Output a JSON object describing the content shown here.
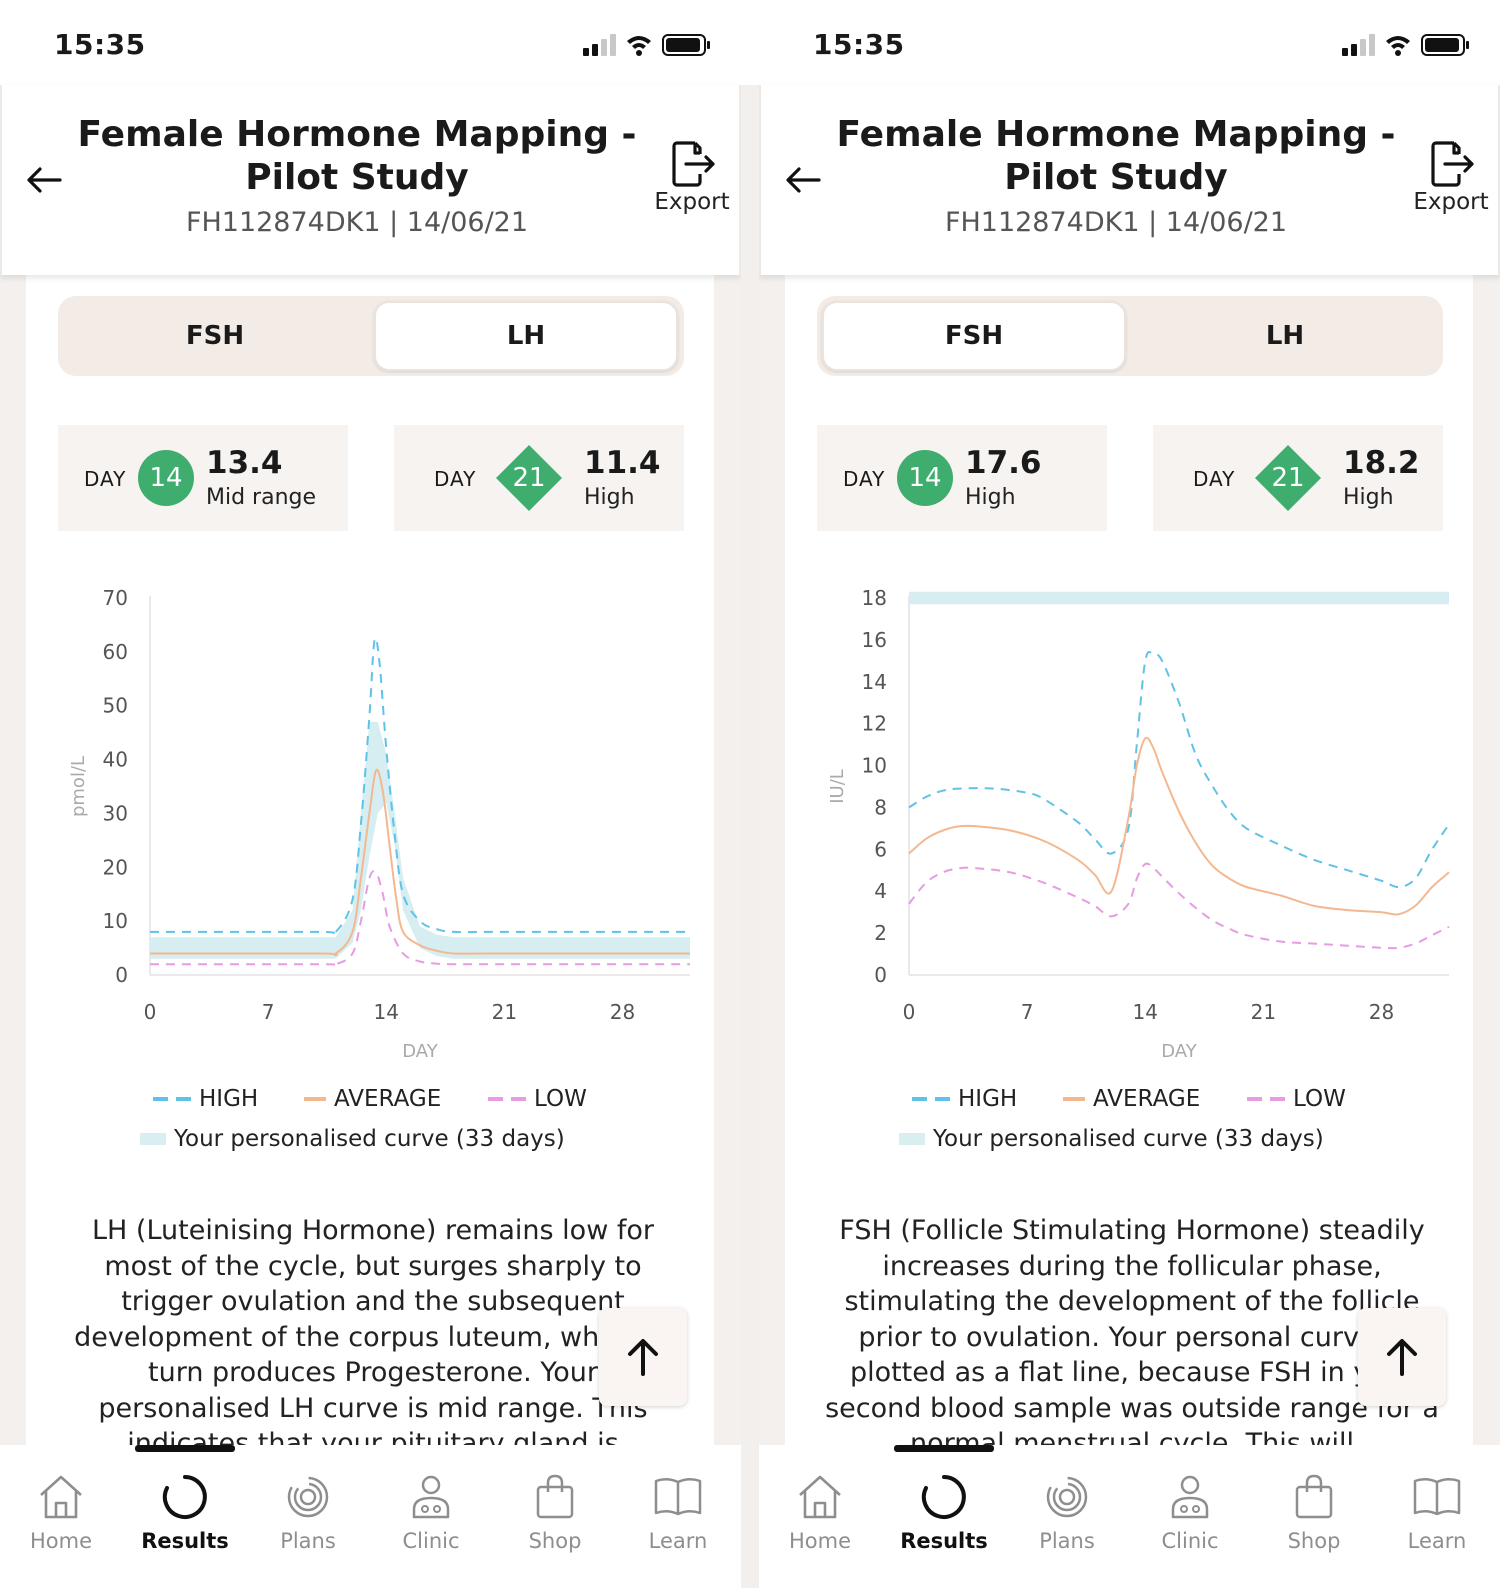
{
  "screens": [
    {
      "status_time": "15:35",
      "header": {
        "title": "Female Hormone Mapping - Pilot Study",
        "title_line1": "Female Hormone Mapping -",
        "title_line2": "Pilot Study",
        "subtitle": "FH112874DK1 | 14/06/21",
        "export_label": "Export"
      },
      "tabs": [
        {
          "label": "FSH",
          "active": false
        },
        {
          "label": "LH",
          "active": true
        }
      ],
      "day_cards": [
        {
          "day_label": "DAY",
          "day": "14",
          "shape": "circle",
          "value": "13.4",
          "status": "Mid range"
        },
        {
          "day_label": "DAY",
          "day": "21",
          "shape": "diamond",
          "value": "11.4",
          "status": "High"
        }
      ],
      "chart_data": {
        "type": "line",
        "ylabel": "pmol/L",
        "xlabel": "DAY",
        "xlim": [
          0,
          32
        ],
        "ylim": [
          0,
          70
        ],
        "xticks": [
          0,
          7,
          14,
          21,
          28
        ],
        "yticks": [
          0,
          10,
          20,
          30,
          40,
          50,
          60,
          70
        ],
        "personalised_band": {
          "x": [
            0,
            10,
            11,
            12,
            12.5,
            13,
            13.5,
            14,
            14.5,
            15,
            16,
            17,
            18,
            20,
            25,
            32
          ],
          "lower": [
            3,
            3,
            3,
            6,
            12,
            22,
            30,
            32,
            24,
            12,
            5,
            3.5,
            3,
            3,
            3,
            3
          ],
          "upper": [
            7,
            7,
            7,
            12,
            30,
            47,
            47,
            41,
            30,
            18,
            9,
            7.5,
            7,
            7,
            7,
            7
          ]
        },
        "series": [
          {
            "name": "HIGH",
            "color": "#5fc2e6",
            "dash": true,
            "x": [
              0,
              10,
              11,
              12,
              12.5,
              13,
              13.3,
              13.6,
              14,
              14.5,
              15,
              16,
              17,
              18,
              20,
              25,
              32
            ],
            "y": [
              8,
              8,
              8,
              14,
              28,
              48,
              62,
              58,
              42,
              26,
              15,
              10,
              8.5,
              8,
              8,
              8,
              8
            ]
          },
          {
            "name": "AVERAGE",
            "color": "#f3b890",
            "x": [
              0,
              10,
              11,
              12,
              12.5,
              13,
              13.4,
              13.8,
              14.2,
              14.6,
              15,
              16,
              17,
              18,
              20,
              25,
              32
            ],
            "y": [
              4,
              4,
              4,
              8,
              18,
              30,
              38,
              34,
              24,
              14,
              8,
              5.5,
              4.5,
              4,
              4,
              4,
              4
            ]
          },
          {
            "name": "LOW",
            "color": "#e79be3",
            "dash": true,
            "x": [
              0,
              10,
              11,
              12,
              12.5,
              13,
              13.4,
              13.8,
              14.2,
              15,
              16,
              17,
              18,
              20,
              25,
              32
            ],
            "y": [
              2,
              2,
              2,
              4,
              10,
              18,
              19,
              15,
              9,
              4,
              2.5,
              2.1,
              2,
              2,
              2,
              2
            ]
          }
        ],
        "legend": [
          "HIGH",
          "AVERAGE",
          "LOW"
        ],
        "band_label": "Your personalised curve (33 days)"
      },
      "description": "LH (Luteinising Hormone) remains low for most of the cycle, but surges sharply to trigger ovulation and the subsequent development of the corpus luteum, which in turn produces Progesterone. Your personalised LH curve is mid range. This indicates that your pituitary gland is"
    },
    {
      "status_time": "15:35",
      "header": {
        "title": "Female Hormone Mapping - Pilot Study",
        "title_line1": "Female Hormone Mapping -",
        "title_line2": "Pilot Study",
        "subtitle": "FH112874DK1 | 14/06/21",
        "export_label": "Export"
      },
      "tabs": [
        {
          "label": "FSH",
          "active": true
        },
        {
          "label": "LH",
          "active": false
        }
      ],
      "day_cards": [
        {
          "day_label": "DAY",
          "day": "14",
          "shape": "circle",
          "value": "17.6",
          "status": "High"
        },
        {
          "day_label": "DAY",
          "day": "21",
          "shape": "diamond",
          "value": "18.2",
          "status": "High"
        }
      ],
      "chart_data": {
        "type": "line",
        "ylabel": "IU/L",
        "xlabel": "DAY",
        "xlim": [
          0,
          32
        ],
        "ylim": [
          0,
          18
        ],
        "xticks": [
          0,
          7,
          14,
          21,
          28
        ],
        "yticks": [
          0,
          2,
          4,
          6,
          8,
          10,
          12,
          14,
          16,
          18
        ],
        "personalised_band": {
          "x": [
            0,
            32
          ],
          "lower": [
            17.7,
            17.7
          ],
          "upper": [
            18.3,
            18.3
          ]
        },
        "series": [
          {
            "name": "HIGH",
            "color": "#5fc2e6",
            "dash": true,
            "x": [
              0,
              1,
              2,
              3,
              5,
              7,
              8,
              10,
              11,
              12,
              13,
              13.5,
              14,
              14.5,
              15,
              16,
              17,
              18,
              19,
              20,
              22,
              24,
              26,
              28,
              29,
              30,
              31,
              32
            ],
            "y": [
              8,
              8.5,
              8.8,
              8.9,
              8.9,
              8.7,
              8.4,
              7.3,
              6.5,
              5.8,
              7,
              11,
              15,
              15.3,
              15,
              13,
              10.5,
              9,
              7.8,
              7,
              6.2,
              5.5,
              5,
              4.5,
              4.2,
              4.6,
              6,
              7.2
            ]
          },
          {
            "name": "AVERAGE",
            "color": "#f3b890",
            "x": [
              0,
              1,
              2,
              3,
              4,
              6,
              8,
              10,
              11,
              12,
              13,
              13.5,
              14,
              14.5,
              15,
              16,
              17,
              18,
              19,
              20,
              22,
              24,
              26,
              28,
              29,
              30,
              31,
              32
            ],
            "y": [
              5.8,
              6.5,
              6.9,
              7.1,
              7.1,
              6.9,
              6.4,
              5.5,
              4.8,
              4,
              7.5,
              10,
              11.3,
              10.8,
              9.7,
              7.8,
              6.3,
              5.2,
              4.6,
              4.2,
              3.8,
              3.3,
              3.1,
              3,
              2.9,
              3.3,
              4.2,
              4.9
            ]
          },
          {
            "name": "LOW",
            "color": "#e79be3",
            "dash": true,
            "x": [
              0,
              1,
              2,
              3,
              4,
              6,
              8,
              10,
              11,
              12,
              13,
              13.5,
              14,
              14.5,
              15,
              16,
              17,
              18,
              19,
              20,
              22,
              24,
              26,
              28,
              29,
              30,
              31,
              32
            ],
            "y": [
              3.4,
              4.4,
              4.9,
              5.1,
              5.1,
              4.9,
              4.4,
              3.7,
              3.3,
              2.8,
              3.4,
              4.6,
              5.3,
              5.1,
              4.7,
              3.9,
              3.2,
              2.6,
              2.2,
              1.9,
              1.6,
              1.5,
              1.4,
              1.3,
              1.3,
              1.5,
              1.9,
              2.3
            ]
          }
        ],
        "legend": [
          "HIGH",
          "AVERAGE",
          "LOW"
        ],
        "band_label": "Your personalised curve (33 days)"
      },
      "description": "FSH (Follicle Stimulating Hormone) steadily increases during the follicular phase, stimulating the development of the follicle prior to ovulation. Your personal curve is plotted as a flat line, because FSH in your second blood sample was outside range for a normal menstrual cycle. This will"
    }
  ],
  "nav": [
    {
      "label": "Home",
      "icon": "home-icon",
      "active": false
    },
    {
      "label": "Results",
      "icon": "results-icon",
      "active": true
    },
    {
      "label": "Plans",
      "icon": "plans-icon",
      "active": false
    },
    {
      "label": "Clinic",
      "icon": "clinic-icon",
      "active": false
    },
    {
      "label": "Shop",
      "icon": "shop-icon",
      "active": false
    },
    {
      "label": "Learn",
      "icon": "learn-icon",
      "active": false
    }
  ],
  "colors": {
    "accent_green": "#3fad6e",
    "band": "#d6eef1",
    "high": "#5fc2e6",
    "average": "#f3b890",
    "low": "#e79be3"
  }
}
